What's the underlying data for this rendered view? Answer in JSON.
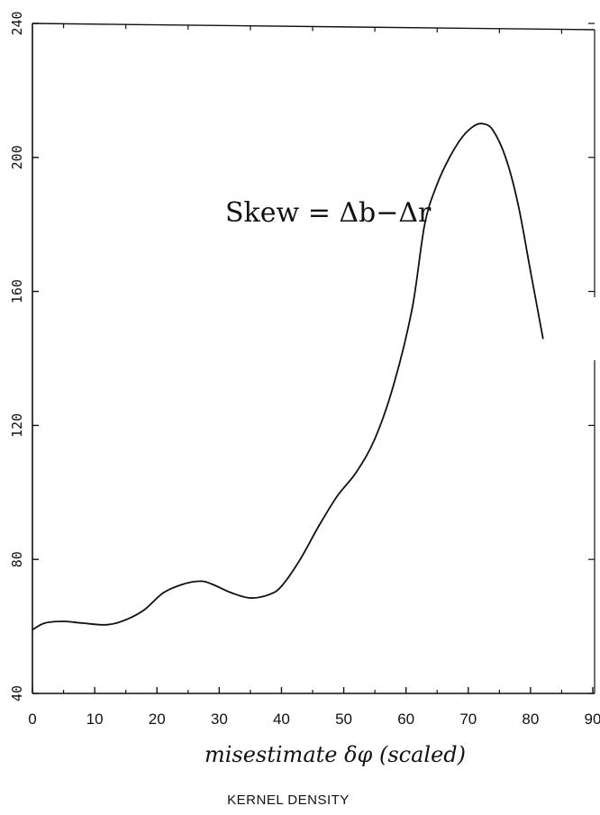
{
  "chart_data": {
    "type": "line",
    "title": "",
    "xlabel": "misestimate δφ (scaled)",
    "ylabel": "",
    "caption": "KERNEL DENSITY",
    "annotation": "Skew = Δb−Δr",
    "xlim": [
      0,
      90
    ],
    "ylim": [
      40,
      240
    ],
    "x_ticks": [
      "0",
      "10",
      "20",
      "30",
      "40",
      "50",
      "60",
      "70",
      "80",
      "90"
    ],
    "y_ticks": [
      "40",
      "80",
      "120",
      "160",
      "200",
      "240"
    ],
    "grid": false,
    "series": [
      {
        "x": [
          0,
          2,
          5,
          8,
          12,
          15,
          18,
          21,
          24,
          27,
          29,
          32,
          35,
          38,
          40,
          43,
          46,
          49,
          52,
          55,
          58,
          61,
          63,
          65,
          67,
          69,
          71,
          72.5,
          74,
          76,
          78,
          80,
          82
        ],
        "y": [
          59,
          61,
          61.5,
          61,
          60.5,
          62,
          65,
          70,
          72.5,
          73.5,
          72.5,
          70,
          68.5,
          69.5,
          72,
          80,
          90,
          99,
          106,
          116,
          132,
          155,
          180,
          192,
          200,
          206,
          209.5,
          210,
          208,
          200,
          186,
          166,
          146
        ]
      }
    ]
  }
}
